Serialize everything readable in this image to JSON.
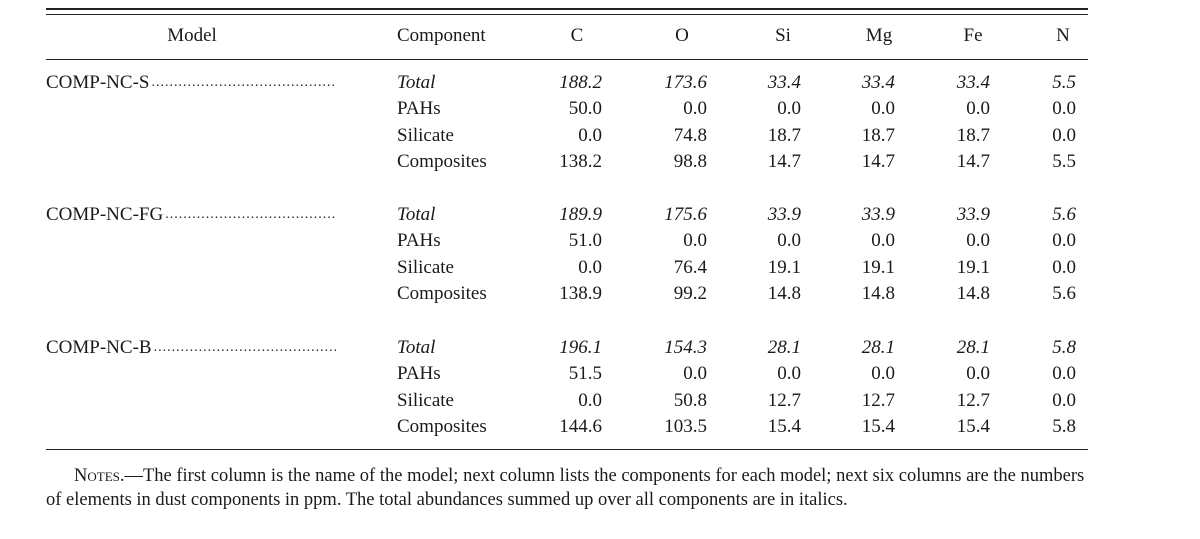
{
  "table": {
    "headers": {
      "model": "Model",
      "component": "Component",
      "elements": [
        "C",
        "O",
        "Si",
        "Mg",
        "Fe",
        "N"
      ]
    },
    "groups": [
      {
        "model": "COMP-NC-S",
        "rows": [
          {
            "component": "Total",
            "italic": true,
            "values": [
              "188.2",
              "173.6",
              "33.4",
              "33.4",
              "33.4",
              "5.5"
            ]
          },
          {
            "component": "PAHs",
            "italic": false,
            "values": [
              "50.0",
              "0.0",
              "0.0",
              "0.0",
              "0.0",
              "0.0"
            ]
          },
          {
            "component": "Silicate",
            "italic": false,
            "values": [
              "0.0",
              "74.8",
              "18.7",
              "18.7",
              "18.7",
              "0.0"
            ]
          },
          {
            "component": "Composites",
            "italic": false,
            "values": [
              "138.2",
              "98.8",
              "14.7",
              "14.7",
              "14.7",
              "5.5"
            ]
          }
        ]
      },
      {
        "model": "COMP-NC-FG",
        "rows": [
          {
            "component": "Total",
            "italic": true,
            "values": [
              "189.9",
              "175.6",
              "33.9",
              "33.9",
              "33.9",
              "5.6"
            ]
          },
          {
            "component": "PAHs",
            "italic": false,
            "values": [
              "51.0",
              "0.0",
              "0.0",
              "0.0",
              "0.0",
              "0.0"
            ]
          },
          {
            "component": "Silicate",
            "italic": false,
            "values": [
              "0.0",
              "76.4",
              "19.1",
              "19.1",
              "19.1",
              "0.0"
            ]
          },
          {
            "component": "Composites",
            "italic": false,
            "values": [
              "138.9",
              "99.2",
              "14.8",
              "14.8",
              "14.8",
              "5.6"
            ]
          }
        ]
      },
      {
        "model": "COMP-NC-B",
        "rows": [
          {
            "component": "Total",
            "italic": true,
            "values": [
              "196.1",
              "154.3",
              "28.1",
              "28.1",
              "28.1",
              "5.8"
            ]
          },
          {
            "component": "PAHs",
            "italic": false,
            "values": [
              "51.5",
              "0.0",
              "0.0",
              "0.0",
              "0.0",
              "0.0"
            ]
          },
          {
            "component": "Silicate",
            "italic": false,
            "values": [
              "0.0",
              "50.8",
              "12.7",
              "12.7",
              "12.7",
              "0.0"
            ]
          },
          {
            "component": "Composites",
            "italic": false,
            "values": [
              "144.6",
              "103.5",
              "15.4",
              "15.4",
              "15.4",
              "5.8"
            ]
          }
        ]
      }
    ]
  },
  "notes": {
    "lead": "Notes.",
    "text": "—The first column is the name of the model; next column lists the components for each model; next six columns are the numbers of elements in dust components in ppm. The total abundances summed up over all components are in italics."
  }
}
